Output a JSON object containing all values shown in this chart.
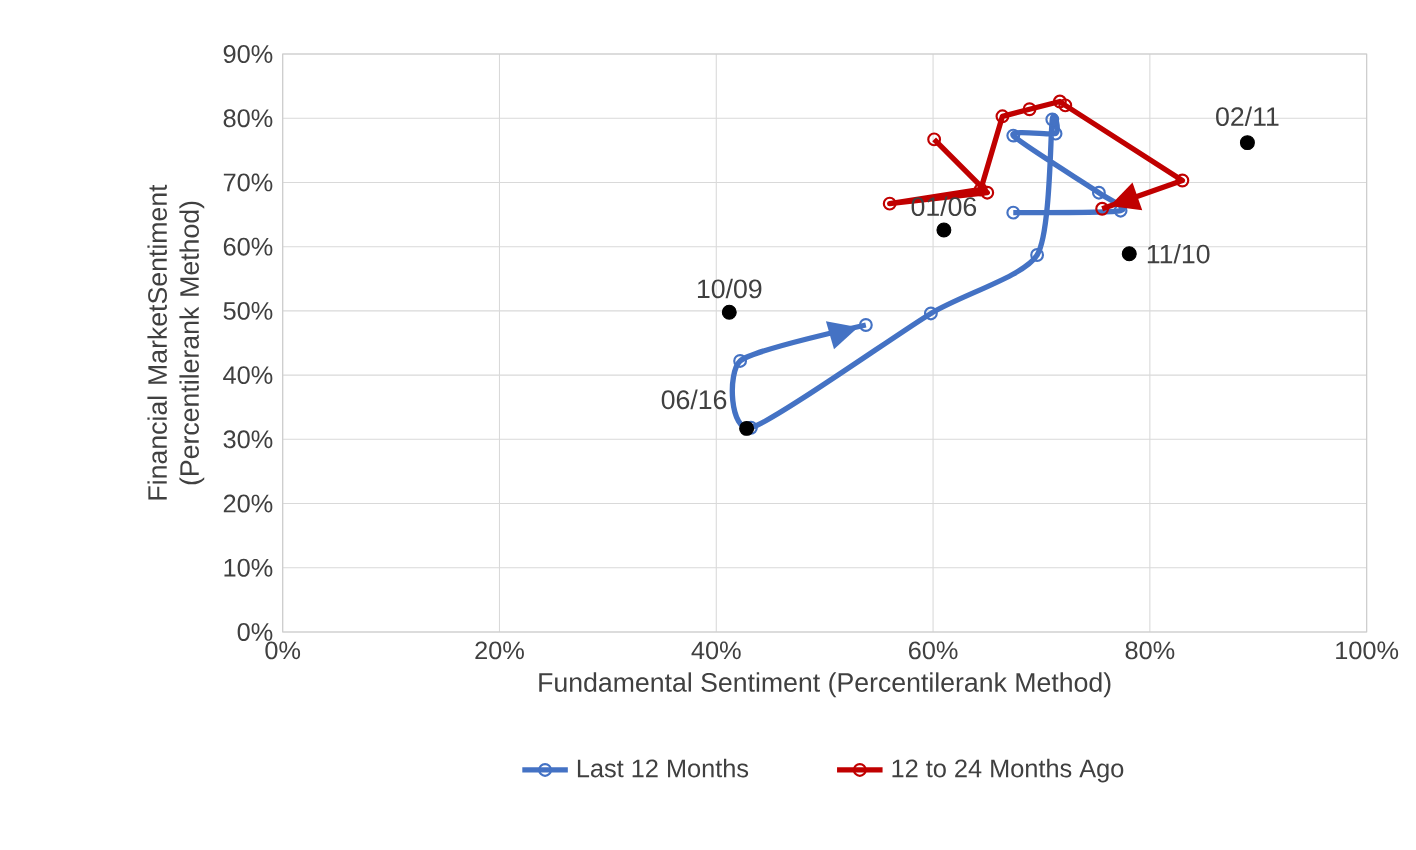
{
  "chart_data": {
    "type": "line",
    "xlabel": "Fundamental Sentiment  (Percentilerank Method)",
    "ylabel": "Financial MarketSentiment (Percentilerank Method)",
    "xlim": [
      0,
      100
    ],
    "ylim": [
      0,
      90
    ],
    "xticks": [
      {
        "value": 0,
        "label": "0%"
      },
      {
        "value": 20,
        "label": "20%"
      },
      {
        "value": 40,
        "label": "40%"
      },
      {
        "value": 60,
        "label": "60%"
      },
      {
        "value": 80,
        "label": "80%"
      },
      {
        "value": 100,
        "label": "100%"
      }
    ],
    "yticks": [
      {
        "value": 0,
        "label": "0%"
      },
      {
        "value": 10,
        "label": "10%"
      },
      {
        "value": 20,
        "label": "20%"
      },
      {
        "value": 30,
        "label": "30%"
      },
      {
        "value": 40,
        "label": "40%"
      },
      {
        "value": 50,
        "label": "50%"
      },
      {
        "value": 60,
        "label": "60%"
      },
      {
        "value": 70,
        "label": "70%"
      },
      {
        "value": 80,
        "label": "80%"
      },
      {
        "value": 90,
        "label": "90%"
      }
    ],
    "grid": true,
    "legend": "bottom",
    "marker": "circle",
    "line_style": "solid",
    "series": [
      {
        "name": "Last 12 Months",
        "color": "#4472c4",
        "x": [
          67.4,
          77.3,
          75.3,
          67.4,
          71.3,
          71.0,
          69.6,
          59.8,
          43.2,
          42.2,
          53.8
        ],
        "values": [
          65.3,
          65.6,
          68.4,
          77.3,
          77.6,
          79.8,
          58.7,
          49.6,
          31.8,
          42.2,
          47.8
        ]
      },
      {
        "name": "12 to 24 Months Ago",
        "color": "#c00000",
        "x": [
          60.1,
          65.0,
          56.0,
          64.4,
          66.4,
          68.9,
          71.7,
          72.2,
          83.0,
          75.6
        ],
        "values": [
          76.7,
          68.4,
          66.7,
          68.9,
          80.3,
          81.4,
          82.6,
          82.0,
          70.3,
          65.9
        ]
      },
      {
        "type": "scatter",
        "color": "#000000",
        "x": [
          41.2,
          42.8,
          61.0,
          78.1,
          89.0
        ],
        "values": [
          49.8,
          31.7,
          62.6,
          58.9,
          76.2
        ]
      }
    ],
    "annotations": [
      {
        "text": "10/09",
        "x": 41.2,
        "y": 49.8
      },
      {
        "text": "06/16",
        "x": 42.8,
        "y": 31.7
      },
      {
        "text": "01/06",
        "x": 61.0,
        "y": 62.6
      },
      {
        "text": "11/10",
        "x": 78.1,
        "y": 58.9
      },
      {
        "text": "02/11",
        "x": 89.0,
        "y": 76.2
      }
    ]
  }
}
